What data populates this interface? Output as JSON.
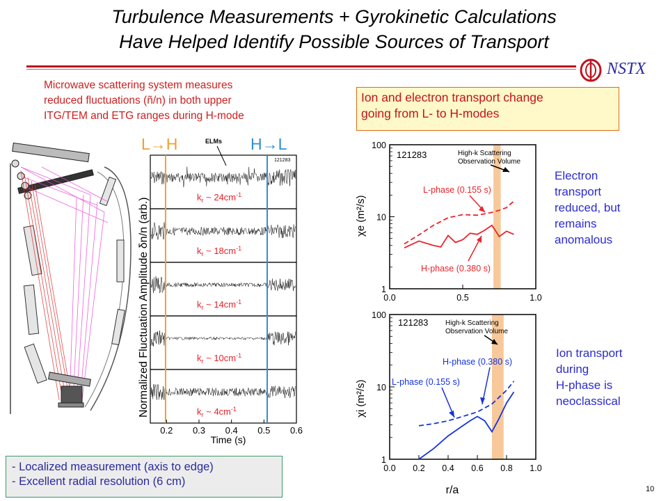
{
  "title": {
    "line1": "Turbulence Measurements + Gyrokinetic Calculations",
    "line2": "Have Helped Identify Possible Sources of Transport"
  },
  "logo": {
    "text": "NSTX"
  },
  "left_note": {
    "line1": "Microwave scattering system measures",
    "line2": "reduced fluctuations (ñ/n) in both upper",
    "line3": "ITG/TEM and ETG ranges during H-mode"
  },
  "transport_box": {
    "line1": "Ion and electron transport change",
    "line2": "going from L- to H-modes"
  },
  "electron_note": {
    "line1": "Electron",
    "line2": "transport",
    "line3": "reduced, but",
    "line4": "remains",
    "line5": "anomalous"
  },
  "ion_note": {
    "line1": "Ion transport",
    "line2": "during",
    "line3": "H-phase is",
    "line4": "neoclassical"
  },
  "bottom_box": {
    "line1": "- Localized measurement (axis to edge)",
    "line2": "- Excellent radial resolution (6 cm)"
  },
  "page_number": "10",
  "colors": {
    "red": "#e8232a",
    "blue": "#1432e0",
    "orange_band": "#f7c99a",
    "lh_line": "#f0a030",
    "hl_line": "#3090d0"
  },
  "chart_data": [
    {
      "type": "line",
      "title": "",
      "xlabel": "Time (s)",
      "ylabel": "Normalized Fluctuation Amplitude δn/n (arb.)",
      "xlim": [
        0.15,
        0.6
      ],
      "xticks": [
        "0.2",
        "0.3",
        "0.4",
        "0.5",
        "0.6"
      ],
      "shot": "121283",
      "annotation": "ELMs",
      "transition_labels": {
        "lh": "L→H",
        "hl": "H→L"
      },
      "transitions": {
        "lh": 0.197,
        "hl": 0.51
      },
      "series": [
        {
          "label": "k",
          "sub": "r",
          "suffix": " ~ 24cm",
          "sup": "-1"
        },
        {
          "label": "k",
          "sub": "r",
          "suffix": " ~ 18cm",
          "sup": "-1"
        },
        {
          "label": "k",
          "sub": "r",
          "suffix": " ~ 14cm",
          "sup": "-1"
        },
        {
          "label": "k",
          "sub": "r",
          "suffix": " ~ 10cm",
          "sup": "-1"
        },
        {
          "label": "k",
          "sub": "r",
          "suffix": " ~ 4cm",
          "sup": "-1"
        }
      ]
    },
    {
      "type": "line",
      "title": "",
      "shot": "121283",
      "xlabel": "",
      "ylabel": "χe (m²/s)",
      "xlim": [
        0.0,
        1.0
      ],
      "ylim": [
        1,
        100
      ],
      "yscale": "log",
      "xticks": [
        "0.0",
        "0.5",
        "1.0"
      ],
      "yticks": [
        "1",
        "10",
        "100"
      ],
      "band": [
        0.71,
        0.76
      ],
      "band_label": [
        "High-k Scattering",
        "Observation Volume"
      ],
      "series": [
        {
          "name": "L-phase (0.155 s)",
          "style": "dashed",
          "x": [
            0.1,
            0.2,
            0.3,
            0.4,
            0.5,
            0.6,
            0.7,
            0.75,
            0.8,
            0.85
          ],
          "y": [
            4.2,
            5.6,
            7.6,
            9.7,
            10.7,
            10.5,
            11.5,
            12.3,
            13.4,
            16.5
          ]
        },
        {
          "name": "H-phase (0.380 s)",
          "style": "solid",
          "x": [
            0.1,
            0.2,
            0.3,
            0.35,
            0.4,
            0.45,
            0.5,
            0.55,
            0.6,
            0.65,
            0.7,
            0.75,
            0.8,
            0.85
          ],
          "y": [
            3.7,
            4.6,
            4.0,
            3.8,
            5.5,
            4.4,
            4.8,
            5.9,
            5.7,
            6.5,
            7.6,
            5.3,
            6.3,
            5.7
          ]
        }
      ]
    },
    {
      "type": "line",
      "title": "",
      "shot": "121283",
      "xlabel": "r/a",
      "ylabel": "χi (m²/s)",
      "xlim": [
        0.0,
        1.0
      ],
      "ylim": [
        1,
        100
      ],
      "yscale": "log",
      "xticks": [
        "0.0",
        "0.2",
        "0.4",
        "0.6",
        "0.8",
        "1.0"
      ],
      "yticks": [
        "1",
        "10",
        "100"
      ],
      "band": [
        0.7,
        0.78
      ],
      "band_label": [
        "High-k Scattering",
        "Observation Volume"
      ],
      "series": [
        {
          "name": "H-phase (0.380 s)",
          "style": "dashed",
          "x": [
            0.2,
            0.3,
            0.4,
            0.5,
            0.6,
            0.7,
            0.8,
            0.85
          ],
          "y": [
            2.9,
            3.1,
            3.4,
            3.9,
            4.5,
            5.8,
            9.0,
            12.0
          ]
        },
        {
          "name": "L-phase (0.155 s)",
          "style": "solid",
          "x": [
            0.2,
            0.3,
            0.4,
            0.5,
            0.55,
            0.6,
            0.65,
            0.7,
            0.75,
            0.8,
            0.85
          ],
          "y": [
            1.0,
            1.4,
            2.1,
            2.9,
            3.4,
            3.9,
            3.4,
            2.4,
            3.7,
            6.0,
            8.5
          ]
        }
      ]
    }
  ]
}
